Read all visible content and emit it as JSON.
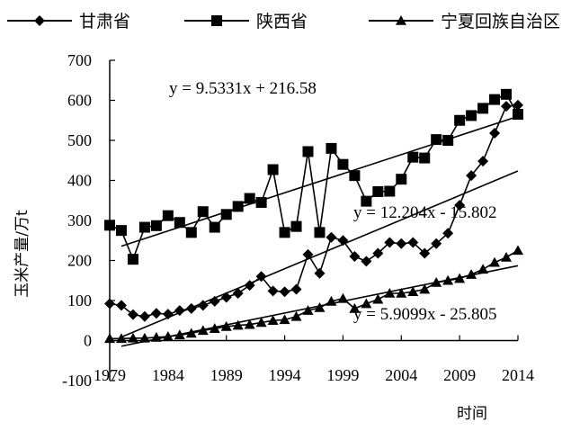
{
  "chart_data": {
    "type": "line",
    "title": "",
    "xlabel": "时间",
    "ylabel": "玉米产量/万t",
    "ylim": [
      -100,
      700
    ],
    "yticks": [
      "-100",
      "0",
      "100",
      "200",
      "300",
      "400",
      "500",
      "600",
      "700"
    ],
    "xticks": [
      "1979",
      "1984",
      "1989",
      "1994",
      "1999",
      "2004",
      "2009",
      "2014"
    ],
    "x": [
      1979,
      1980,
      1981,
      1982,
      1983,
      1984,
      1985,
      1986,
      1987,
      1988,
      1989,
      1990,
      1991,
      1992,
      1993,
      1994,
      1995,
      1996,
      1997,
      1998,
      1999,
      2000,
      2001,
      2002,
      2003,
      2004,
      2005,
      2006,
      2007,
      2008,
      2009,
      2010,
      2011,
      2012,
      2013,
      2014
    ],
    "legend_position": "top",
    "grid": false,
    "series": [
      {
        "name": "甘肃省",
        "marker": "diamond",
        "values": [
          92,
          88,
          65,
          60,
          68,
          66,
          75,
          80,
          88,
          98,
          108,
          118,
          138,
          160,
          124,
          122,
          128,
          215,
          168,
          258,
          250,
          210,
          198,
          218,
          245,
          242,
          245,
          218,
          242,
          268,
          338,
          412,
          448,
          518,
          585,
          588
        ]
      },
      {
        "name": "陕西省",
        "marker": "square",
        "values": [
          288,
          275,
          203,
          283,
          287,
          312,
          295,
          270,
          322,
          283,
          315,
          335,
          355,
          345,
          427,
          270,
          285,
          472,
          270,
          480,
          440,
          412,
          348,
          372,
          373,
          403,
          458,
          456,
          502,
          500,
          550,
          562,
          580,
          602,
          615,
          565
        ]
      },
      {
        "name": "宁夏回族自治区",
        "marker": "triangle",
        "values": [
          5,
          5,
          6,
          6,
          8,
          10,
          14,
          18,
          25,
          30,
          35,
          38,
          40,
          45,
          50,
          52,
          60,
          75,
          82,
          98,
          105,
          80,
          92,
          103,
          118,
          118,
          122,
          128,
          145,
          150,
          155,
          165,
          178,
          195,
          208,
          225
        ]
      }
    ],
    "trendlines": [
      {
        "series": "甘肃省",
        "slope": 12.204,
        "intercept": -15.802,
        "label": "y = 12.204x  - 15.802"
      },
      {
        "series": "陕西省",
        "slope": 9.5331,
        "intercept": 216.58,
        "label": "y = 9.5331x + 216.58"
      },
      {
        "series": "宁夏回族自治区",
        "slope": 5.9099,
        "intercept": -25.805,
        "label": "y = 5.9099x  - 25.805"
      }
    ]
  }
}
